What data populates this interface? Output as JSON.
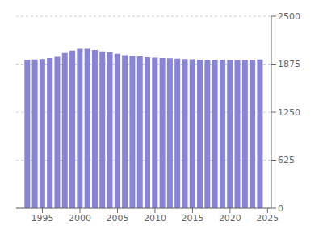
{
  "chart_data": {
    "type": "bar",
    "x": [
      1993,
      1994,
      1995,
      1996,
      1997,
      1998,
      1999,
      2000,
      2001,
      2002,
      2003,
      2004,
      2005,
      2006,
      2007,
      2008,
      2009,
      2010,
      2011,
      2012,
      2013,
      2014,
      2015,
      2016,
      2017,
      2018,
      2019,
      2020,
      2021,
      2022,
      2023,
      2024
    ],
    "values": [
      1930,
      1935,
      1940,
      1955,
      1970,
      2020,
      2050,
      2075,
      2075,
      2060,
      2040,
      2030,
      2010,
      1990,
      1980,
      1975,
      1965,
      1960,
      1955,
      1950,
      1945,
      1940,
      1938,
      1933,
      1932,
      1930,
      1930,
      1928,
      1928,
      1928,
      1928,
      1935
    ],
    "color": "#8884d8",
    "xlim": [
      1991.5,
      2025.5
    ],
    "xticks": [
      1995,
      2000,
      2005,
      2010,
      2015,
      2020,
      2025
    ],
    "ylim": [
      0,
      2500
    ],
    "yticks": [
      0,
      625,
      1250,
      1875,
      2500
    ],
    "grid": true
  }
}
